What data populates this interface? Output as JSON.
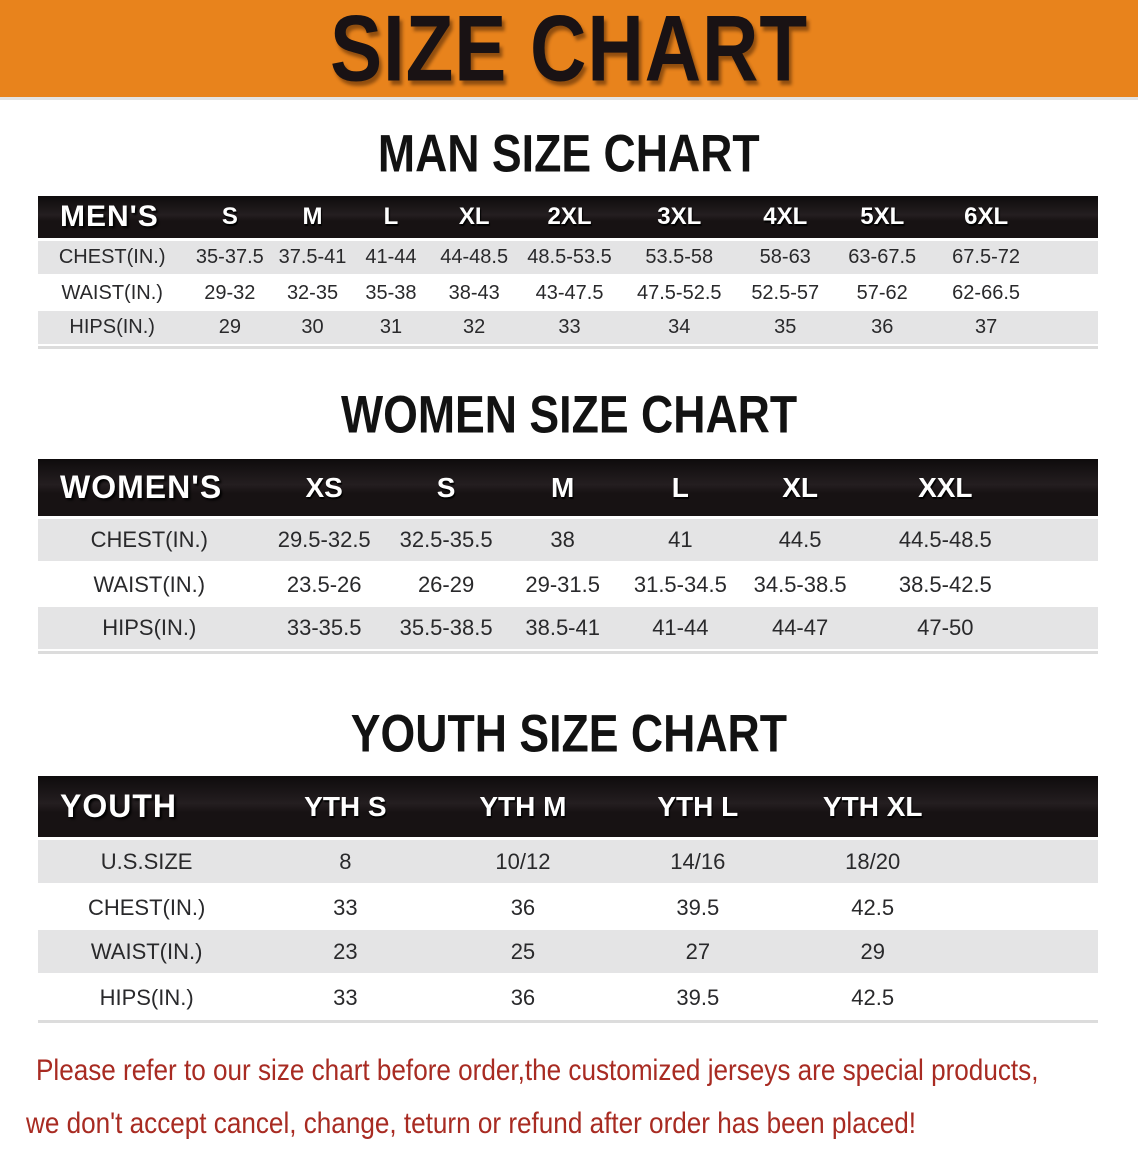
{
  "banner": {
    "title": "SIZE CHART",
    "bg_color": "#e8831c"
  },
  "colors": {
    "banner_orange": "#e8831c",
    "header_black": "#171213",
    "band_gray": "#e4e4e5",
    "disclaimer_red": "#a82b22"
  },
  "men": {
    "title": "MAN SIZE CHART",
    "table": {
      "label": "MEN'S",
      "columns": [
        "S",
        "M",
        "L",
        "XL",
        "2XL",
        "3XL",
        "4XL",
        "5XL",
        "6XL"
      ],
      "rows": [
        {
          "label": "CHEST(IN.)",
          "values": [
            "35-37.5",
            "37.5-41",
            "41-44",
            "44-48.5",
            "48.5-53.5",
            "53.5-58",
            "58-63",
            "63-67.5",
            "67.5-72"
          ]
        },
        {
          "label": "WAIST(IN.)",
          "values": [
            "29-32",
            "32-35",
            "35-38",
            "38-43",
            "43-47.5",
            "47.5-52.5",
            "52.5-57",
            "57-62",
            "62-66.5"
          ]
        },
        {
          "label": "HIPS(IN.)",
          "values": [
            "29",
            "30",
            "31",
            "32",
            "33",
            "34",
            "35",
            "36",
            "37"
          ]
        }
      ]
    }
  },
  "women": {
    "title": "WOMEN SIZE CHART",
    "table": {
      "label": "WOMEN'S",
      "columns": [
        "XS",
        "S",
        "M",
        "L",
        "XL",
        "XXL"
      ],
      "rows": [
        {
          "label": "CHEST(IN.)",
          "values": [
            "29.5-32.5",
            "32.5-35.5",
            "38",
            "41",
            "44.5",
            "44.5-48.5"
          ]
        },
        {
          "label": "WAIST(IN.)",
          "values": [
            "23.5-26",
            "26-29",
            "29-31.5",
            "31.5-34.5",
            "34.5-38.5",
            "38.5-42.5"
          ]
        },
        {
          "label": "HIPS(IN.)",
          "values": [
            "33-35.5",
            "35.5-38.5",
            "38.5-41",
            "41-44",
            "44-47",
            "47-50"
          ]
        }
      ]
    }
  },
  "youth": {
    "title": "YOUTH SIZE CHART",
    "table": {
      "label": "YOUTH",
      "columns": [
        "YTH S",
        "YTH M",
        "YTH L",
        "YTH XL"
      ],
      "rows": [
        {
          "label": "U.S.SIZE",
          "values": [
            "8",
            "10/12",
            "14/16",
            "18/20"
          ]
        },
        {
          "label": "CHEST(IN.)",
          "values": [
            "33",
            "36",
            "39.5",
            "42.5"
          ]
        },
        {
          "label": "WAIST(IN.)",
          "values": [
            "23",
            "25",
            "27",
            "29"
          ]
        },
        {
          "label": "HIPS(IN.)",
          "values": [
            "33",
            "36",
            "39.5",
            "42.5"
          ]
        }
      ]
    }
  },
  "disclaimer": {
    "line1": "Please refer to our size chart before order,the customized jerseys are special products,",
    "line2": "we don't accept cancel, change, teturn or refund after order has been placed!"
  }
}
